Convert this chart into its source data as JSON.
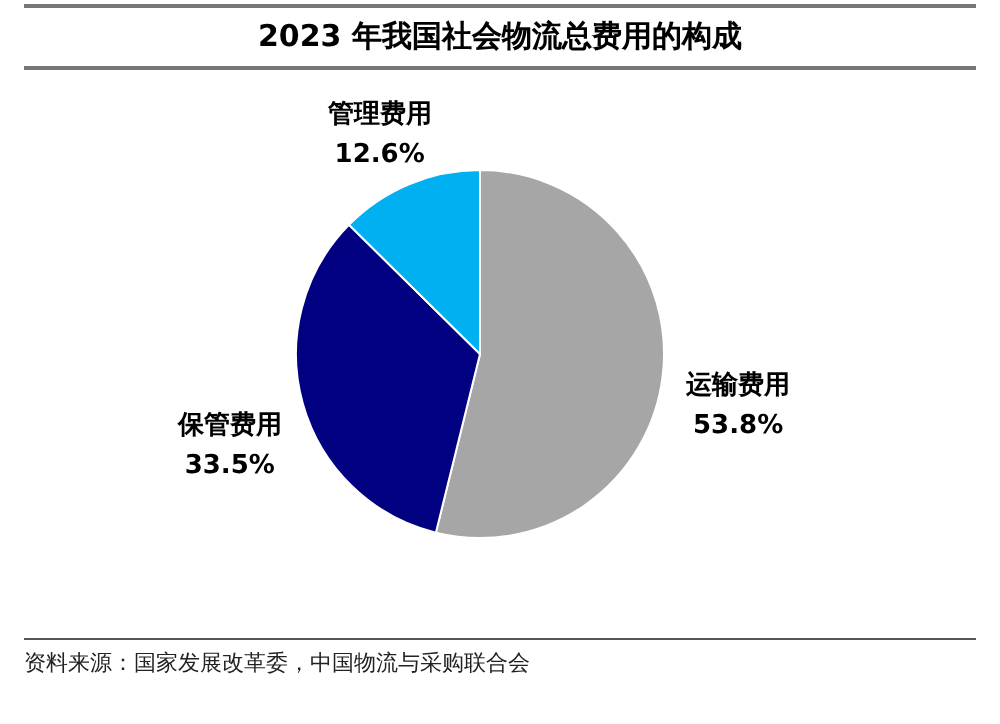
{
  "chart_data": {
    "type": "pie",
    "title": "2023 年我国社会物流总费用的构成",
    "categories": [
      "运输费用",
      "保管费用",
      "管理费用"
    ],
    "values": [
      53.8,
      33.5,
      12.6
    ],
    "colors": [
      "#a6a6a6",
      "#000080",
      "#00b0f0"
    ],
    "value_labels": [
      "53.8%",
      "33.5%",
      "12.6%"
    ],
    "annotations": [
      "资料来源：国家发展改革委，中国物流与采购联合会"
    ]
  }
}
